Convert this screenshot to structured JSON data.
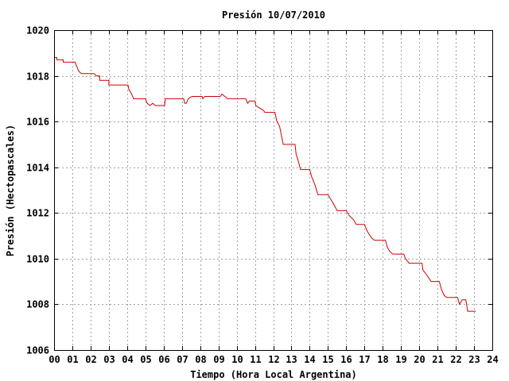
{
  "chart_data": {
    "type": "line",
    "title": "Presión 10/07/2010",
    "xlabel": "Tiempo (Hora Local Argentina)",
    "ylabel": "Presión (Hectopascales)",
    "xlim": [
      0,
      24
    ],
    "ylim": [
      1006,
      1020
    ],
    "x_ticks": [
      {
        "value": 0,
        "label": "00"
      },
      {
        "value": 1,
        "label": "01"
      },
      {
        "value": 2,
        "label": "02"
      },
      {
        "value": 3,
        "label": "03"
      },
      {
        "value": 4,
        "label": "04"
      },
      {
        "value": 5,
        "label": "05"
      },
      {
        "value": 6,
        "label": "06"
      },
      {
        "value": 7,
        "label": "07"
      },
      {
        "value": 8,
        "label": "08"
      },
      {
        "value": 9,
        "label": "09"
      },
      {
        "value": 10,
        "label": "10"
      },
      {
        "value": 11,
        "label": "11"
      },
      {
        "value": 12,
        "label": "12"
      },
      {
        "value": 13,
        "label": "13"
      },
      {
        "value": 14,
        "label": "14"
      },
      {
        "value": 15,
        "label": "15"
      },
      {
        "value": 16,
        "label": "16"
      },
      {
        "value": 17,
        "label": "17"
      },
      {
        "value": 18,
        "label": "18"
      },
      {
        "value": 19,
        "label": "19"
      },
      {
        "value": 20,
        "label": "20"
      },
      {
        "value": 21,
        "label": "21"
      },
      {
        "value": 22,
        "label": "22"
      },
      {
        "value": 23,
        "label": "23"
      },
      {
        "value": 24,
        "label": "24"
      }
    ],
    "y_ticks": [
      {
        "value": 1006,
        "label": "1006"
      },
      {
        "value": 1008,
        "label": "1008"
      },
      {
        "value": 1010,
        "label": "1010"
      },
      {
        "value": 1012,
        "label": "1012"
      },
      {
        "value": 1014,
        "label": "1014"
      },
      {
        "value": 1016,
        "label": "1016"
      },
      {
        "value": 1018,
        "label": "1018"
      },
      {
        "value": 1020,
        "label": "1020"
      }
    ],
    "grid": true,
    "line_color": "#cc0000",
    "series": [
      {
        "points": [
          [
            0.0,
            1018.8
          ],
          [
            0.15,
            1018.8
          ],
          [
            0.15,
            1018.7
          ],
          [
            0.5,
            1018.7
          ],
          [
            0.5,
            1018.6
          ],
          [
            1.15,
            1018.6
          ],
          [
            1.25,
            1018.4
          ],
          [
            1.35,
            1018.2
          ],
          [
            1.5,
            1018.1
          ],
          [
            2.2,
            1018.1
          ],
          [
            2.3,
            1018.0
          ],
          [
            2.5,
            1018.0
          ],
          [
            2.5,
            1017.8
          ],
          [
            3.0,
            1017.8
          ],
          [
            3.0,
            1017.6
          ],
          [
            4.05,
            1017.6
          ],
          [
            4.1,
            1017.4
          ],
          [
            4.25,
            1017.2
          ],
          [
            4.35,
            1017.0
          ],
          [
            5.0,
            1017.0
          ],
          [
            5.1,
            1016.8
          ],
          [
            5.25,
            1016.7
          ],
          [
            5.4,
            1016.8
          ],
          [
            5.55,
            1016.7
          ],
          [
            6.05,
            1016.7
          ],
          [
            6.1,
            1017.0
          ],
          [
            7.1,
            1017.0
          ],
          [
            7.15,
            1016.8
          ],
          [
            7.25,
            1016.8
          ],
          [
            7.35,
            1017.0
          ],
          [
            7.55,
            1017.1
          ],
          [
            8.1,
            1017.1
          ],
          [
            8.15,
            1017.0
          ],
          [
            8.25,
            1017.1
          ],
          [
            9.1,
            1017.1
          ],
          [
            9.2,
            1017.2
          ],
          [
            9.35,
            1017.1
          ],
          [
            9.5,
            1017.0
          ],
          [
            10.5,
            1017.0
          ],
          [
            10.6,
            1016.8
          ],
          [
            10.7,
            1016.9
          ],
          [
            11.0,
            1016.9
          ],
          [
            11.05,
            1016.7
          ],
          [
            11.25,
            1016.6
          ],
          [
            11.45,
            1016.5
          ],
          [
            11.55,
            1016.4
          ],
          [
            12.1,
            1016.4
          ],
          [
            12.2,
            1016.0
          ],
          [
            12.35,
            1015.8
          ],
          [
            12.45,
            1015.4
          ],
          [
            12.55,
            1015.0
          ],
          [
            13.2,
            1015.0
          ],
          [
            13.25,
            1014.6
          ],
          [
            13.4,
            1014.2
          ],
          [
            13.5,
            1013.9
          ],
          [
            14.0,
            1013.9
          ],
          [
            14.1,
            1013.6
          ],
          [
            14.3,
            1013.2
          ],
          [
            14.45,
            1012.8
          ],
          [
            15.0,
            1012.8
          ],
          [
            15.15,
            1012.6
          ],
          [
            15.3,
            1012.4
          ],
          [
            15.5,
            1012.1
          ],
          [
            16.0,
            1012.1
          ],
          [
            16.15,
            1011.9
          ],
          [
            16.4,
            1011.7
          ],
          [
            16.55,
            1011.5
          ],
          [
            17.0,
            1011.5
          ],
          [
            17.15,
            1011.2
          ],
          [
            17.4,
            1010.9
          ],
          [
            17.55,
            1010.8
          ],
          [
            18.15,
            1010.8
          ],
          [
            18.25,
            1010.5
          ],
          [
            18.4,
            1010.3
          ],
          [
            18.55,
            1010.2
          ],
          [
            19.15,
            1010.2
          ],
          [
            19.25,
            1010.0
          ],
          [
            19.45,
            1009.8
          ],
          [
            20.15,
            1009.8
          ],
          [
            20.2,
            1009.5
          ],
          [
            20.4,
            1009.3
          ],
          [
            20.65,
            1009.0
          ],
          [
            21.1,
            1009.0
          ],
          [
            21.2,
            1008.7
          ],
          [
            21.35,
            1008.4
          ],
          [
            21.5,
            1008.3
          ],
          [
            22.1,
            1008.3
          ],
          [
            22.2,
            1008.0
          ],
          [
            22.35,
            1008.2
          ],
          [
            22.55,
            1008.2
          ],
          [
            22.65,
            1007.7
          ],
          [
            23.1,
            1007.7
          ]
        ]
      }
    ]
  }
}
